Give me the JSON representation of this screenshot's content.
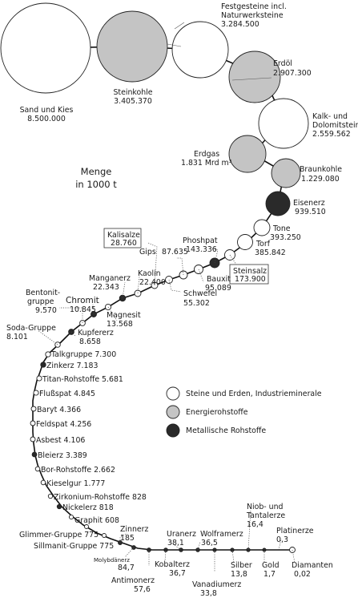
{
  "title": {
    "line1": "Menge",
    "line2": "in 1000 t"
  },
  "colors": {
    "stein": "#ffffff",
    "energie": "#c4c4c4",
    "metall": "#2a2a2a",
    "line": "#111111"
  },
  "legend": [
    {
      "type": "stein",
      "label": "Steine und Erden, Industrieminerale"
    },
    {
      "type": "energie",
      "label": "Energierohstoffe"
    },
    {
      "type": "metall",
      "label": "Metallische Rohstoffe"
    }
  ],
  "big_nodes": [
    {
      "id": "sand",
      "type": "stein",
      "name": "Sand und Kies",
      "value": "8.500.000"
    },
    {
      "id": "steinkohle",
      "type": "energie",
      "name": "Steinkohle",
      "value": "3.405.370"
    },
    {
      "id": "festgesteine",
      "type": "stein",
      "name": "Festgesteine incl.",
      "name2": "Naturwerksteine",
      "value": "3.284.500"
    },
    {
      "id": "erdoel",
      "type": "energie",
      "name": "Erdöl",
      "value": "2.907.300"
    },
    {
      "id": "kalk",
      "type": "stein",
      "name": "Kalk- und",
      "name2": "Dolomitsteine",
      "value": "2.559.562"
    },
    {
      "id": "erdgas",
      "type": "energie",
      "name": "Erdgas",
      "value": "1.831 Mrd m³"
    },
    {
      "id": "braunkohle",
      "type": "energie",
      "name": "Braunkohle",
      "value": "1.229.080"
    },
    {
      "id": "eisenerz",
      "type": "metall",
      "name": "Eisenerz",
      "value": "939.510"
    },
    {
      "id": "tone",
      "type": "stein",
      "name": "Tone",
      "value": "393.250"
    },
    {
      "id": "torf",
      "type": "stein",
      "name": "Torf",
      "value": "385.842"
    }
  ],
  "chain_labels": [
    {
      "id": "steinsalz",
      "name": "Steinsalz",
      "value": "173.900",
      "boxed": true
    },
    {
      "id": "phoshpat",
      "name": "Phoshpat",
      "value": "143.336"
    },
    {
      "id": "bauxit",
      "name": "Bauxit",
      "value": "95.089"
    },
    {
      "id": "gips",
      "name": "Gips",
      "value": "87.635"
    },
    {
      "id": "schwefel",
      "name": "Schwefel",
      "value": "55.302"
    },
    {
      "id": "kalisalze",
      "name": "Kalisalze",
      "value": "28.760",
      "boxed": true
    },
    {
      "id": "kaolin",
      "name": "Kaolin",
      "value": "22.400"
    },
    {
      "id": "manganerz",
      "name": "Manganerz",
      "value": "22.343"
    },
    {
      "id": "magnesit",
      "name": "Magnesit",
      "value": "13.568"
    },
    {
      "id": "chromit",
      "name": "Chromit",
      "value": "10.845"
    },
    {
      "id": "bentonit",
      "name": "Bentonit-",
      "name2": "gruppe",
      "value": "9.570"
    },
    {
      "id": "kupfererz",
      "name": "Kupfererz",
      "value": "8.658"
    },
    {
      "id": "soda",
      "name": "Soda-Gruppe",
      "value": "8.101"
    },
    {
      "id": "talk",
      "text": "Talkgruppe 7.300"
    },
    {
      "id": "zinkerz",
      "text": "Zinkerz 7.183"
    },
    {
      "id": "titan",
      "text": "Titan-Rohstoffe 5.681"
    },
    {
      "id": "fluss",
      "text": "Flußspat 4.845"
    },
    {
      "id": "baryt",
      "text": "Baryt 4.366"
    },
    {
      "id": "feldspat",
      "text": "Feldspat 4.256"
    },
    {
      "id": "asbest",
      "text": "Asbest 4.106"
    },
    {
      "id": "bleierz",
      "text": "Bleierz 3.389"
    },
    {
      "id": "bor",
      "text": "Bor-Rohstoffe 2.662"
    },
    {
      "id": "kieselgur",
      "text": "Kieselgur 1.777"
    },
    {
      "id": "zirkonium",
      "text": "Zirkonium-Rohstoffe 828"
    },
    {
      "id": "nickelerz",
      "text": "Nickelerz 818"
    },
    {
      "id": "graphit",
      "text": "Graphit 608"
    },
    {
      "id": "glimmer",
      "text": "Glimmer-Gruppe 775"
    },
    {
      "id": "sillimanit",
      "text": "Sillmanit-Gruppe 775"
    },
    {
      "id": "zinnerz",
      "name": "Zinnerz",
      "value": "185"
    },
    {
      "id": "molybdaen",
      "name": "Molybdänerz",
      "value": "84,7"
    },
    {
      "id": "antimon",
      "name": "Antimonerz",
      "value": "57,6"
    },
    {
      "id": "kobalt",
      "name": "Kobalterz",
      "value": "36,7"
    },
    {
      "id": "uranerz",
      "name": "Uranerz",
      "value": "38,1"
    },
    {
      "id": "wolfram",
      "name": "Wolframerz",
      "value": "36,5"
    },
    {
      "id": "vanadium",
      "name": "Vanadiumerz",
      "value": "33,8"
    },
    {
      "id": "silber",
      "name": "Silber",
      "value": "13,8"
    },
    {
      "id": "niob",
      "name": "Niob- und",
      "name2": "Tantalerze",
      "value": "16,4"
    },
    {
      "id": "gold",
      "name": "Gold",
      "value": "1,7"
    },
    {
      "id": "platin",
      "name": "Platinerze",
      "value": "0,3"
    },
    {
      "id": "diamanten",
      "name": "Diamanten",
      "value": "0,02"
    }
  ],
  "small_nodes": [
    {
      "type": "stein"
    },
    {
      "type": "metall"
    },
    {
      "type": "stein"
    },
    {
      "type": "stein"
    },
    {
      "type": "stein"
    },
    {
      "type": "stein"
    },
    {
      "type": "stein"
    },
    {
      "type": "metall"
    },
    {
      "type": "stein"
    },
    {
      "type": "metall"
    },
    {
      "type": "stein"
    },
    {
      "type": "metall"
    },
    {
      "type": "stein"
    },
    {
      "type": "stein"
    },
    {
      "type": "metall"
    },
    {
      "type": "stein"
    },
    {
      "type": "stein"
    },
    {
      "type": "stein"
    },
    {
      "type": "stein"
    },
    {
      "type": "stein"
    },
    {
      "type": "metall"
    },
    {
      "type": "stein"
    },
    {
      "type": "stein"
    },
    {
      "type": "stein"
    },
    {
      "type": "metall"
    },
    {
      "type": "stein"
    },
    {
      "type": "stein"
    },
    {
      "type": "stein"
    },
    {
      "type": "metall"
    },
    {
      "type": "metall"
    },
    {
      "type": "metall"
    },
    {
      "type": "metall"
    },
    {
      "type": "metall"
    },
    {
      "type": "metall"
    },
    {
      "type": "metall"
    },
    {
      "type": "metall"
    },
    {
      "type": "metall"
    },
    {
      "type": "metall"
    },
    {
      "type": "stein"
    }
  ]
}
